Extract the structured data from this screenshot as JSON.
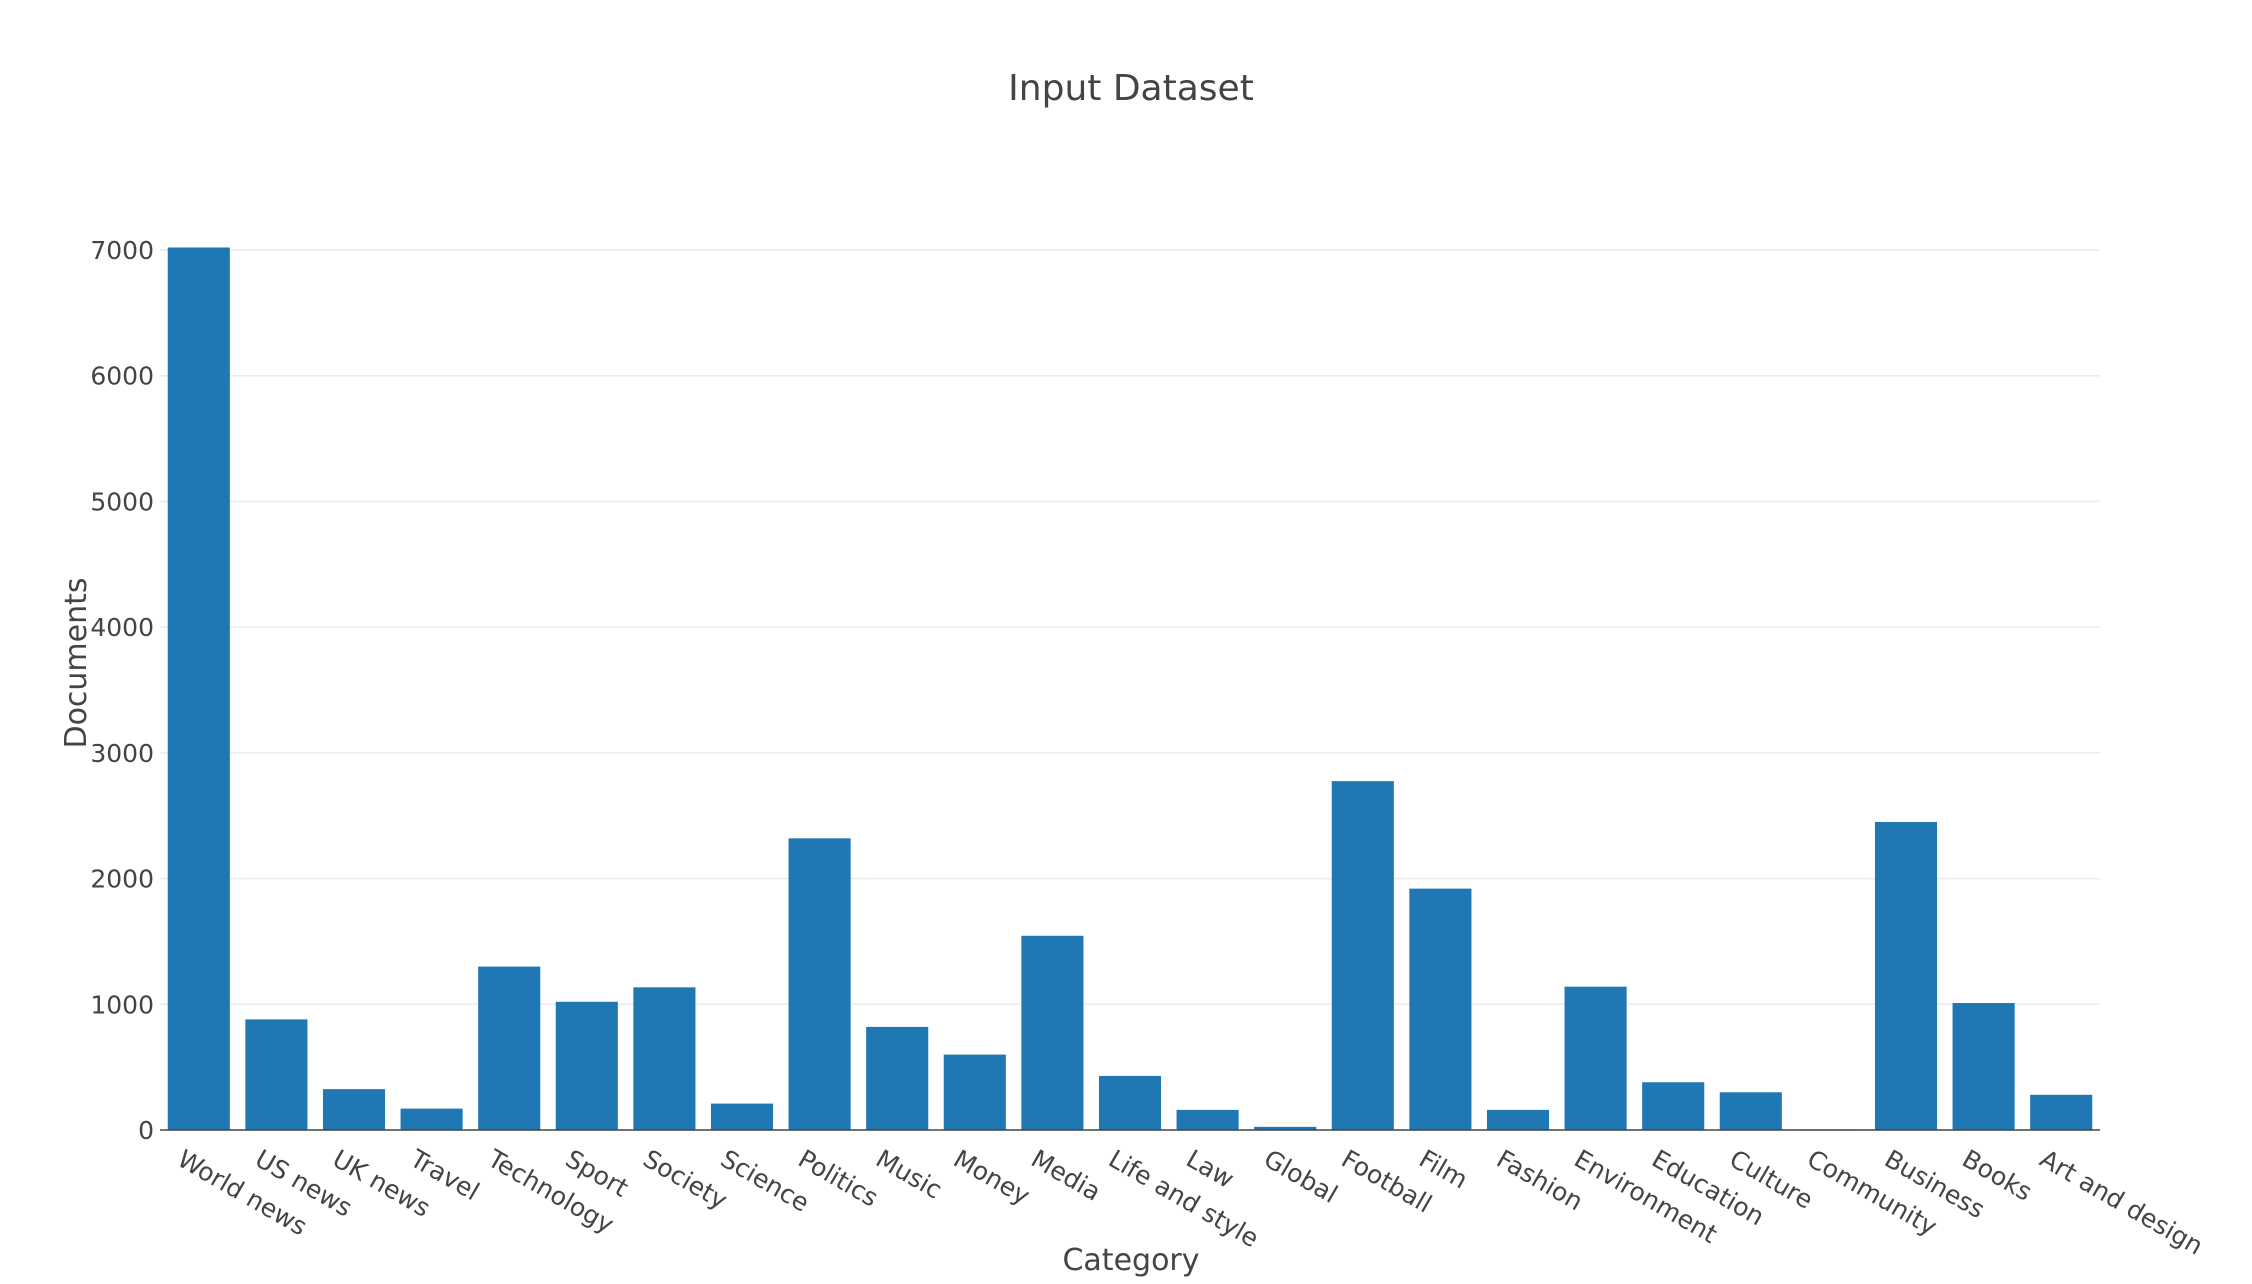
{
  "chart_data": {
    "type": "bar",
    "title": "Input Dataset",
    "xlabel": "Category",
    "ylabel": "Documents",
    "ylim": [
      0,
      7000
    ],
    "yticks": [
      0,
      1000,
      2000,
      3000,
      4000,
      5000,
      6000,
      7000
    ],
    "grid": true,
    "bar_color": "#1f77b4",
    "categories": [
      "World news",
      "US news",
      "UK news",
      "Travel",
      "Technology",
      "Sport",
      "Society",
      "Science",
      "Politics",
      "Music",
      "Money",
      "Media",
      "Life and style",
      "Law",
      "Global",
      "Football",
      "Film",
      "Fashion",
      "Environment",
      "Education",
      "Culture",
      "Community",
      "Business",
      "Books",
      "Art and design"
    ],
    "values": [
      7020,
      880,
      325,
      170,
      1300,
      1020,
      1135,
      210,
      2320,
      820,
      600,
      1545,
      430,
      160,
      25,
      2775,
      1920,
      160,
      1140,
      380,
      300,
      5,
      2450,
      1010,
      280
    ]
  }
}
